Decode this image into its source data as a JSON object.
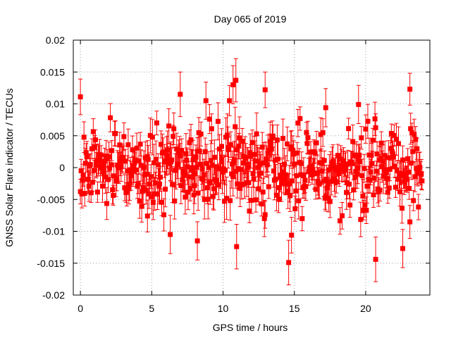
{
  "chart_data": {
    "type": "scatter",
    "title": "Day 065 of 2019",
    "xlabel": "GPS time / hours",
    "ylabel": "GNSS Solar Flare indicator / TECUs",
    "xlim": [
      -0.5,
      24.5
    ],
    "ylim": [
      -0.02,
      0.02
    ],
    "x_ticks": [
      0,
      5,
      10,
      15,
      20
    ],
    "x_tick_labels": [
      "0",
      "5",
      "10",
      "15",
      "20"
    ],
    "y_ticks": [
      -0.02,
      -0.015,
      -0.01,
      -0.005,
      0,
      0.005,
      0.01,
      0.015,
      0.02
    ],
    "y_tick_labels": [
      "-0.02",
      "-0.015",
      "-0.01",
      "-0.005",
      "0",
      "0.005",
      "0.01",
      "0.015",
      "0.02"
    ],
    "grid": true,
    "series": [
      {
        "name": "solar flare indicator",
        "color": "#ff0000",
        "marker": "square",
        "error_bars": true,
        "x_start": 0.0,
        "x_end": 23.95,
        "x_step": 0.05,
        "typical_std": 0.0032,
        "typical_error": 0.0022,
        "highlighted_points": [
          {
            "x": 0.0,
            "y": 0.0111,
            "err": 0.0028
          },
          {
            "x": 10.9,
            "y": 0.0137,
            "err": 0.0034
          },
          {
            "x": 10.7,
            "y": 0.013,
            "err": 0.003
          },
          {
            "x": 12.95,
            "y": 0.0122,
            "err": 0.0028
          },
          {
            "x": 23.1,
            "y": 0.0123,
            "err": 0.0025
          },
          {
            "x": 7.0,
            "y": 0.0115,
            "err": 0.0035
          },
          {
            "x": 14.6,
            "y": -0.0149,
            "err": 0.0035
          },
          {
            "x": 20.7,
            "y": -0.0144,
            "err": 0.0035
          },
          {
            "x": 22.6,
            "y": -0.0127,
            "err": 0.003
          },
          {
            "x": 10.95,
            "y": -0.0124,
            "err": 0.0035
          },
          {
            "x": 8.2,
            "y": -0.0115,
            "err": 0.003
          },
          {
            "x": 6.3,
            "y": -0.0105,
            "err": 0.003
          },
          {
            "x": 14.8,
            "y": -0.0106,
            "err": 0.0028
          },
          {
            "x": 19.5,
            "y": 0.0099,
            "err": 0.003
          },
          {
            "x": 17.2,
            "y": 0.0094,
            "err": 0.003
          },
          {
            "x": 4.7,
            "y": -0.0076,
            "err": 0.0025
          }
        ]
      }
    ]
  }
}
